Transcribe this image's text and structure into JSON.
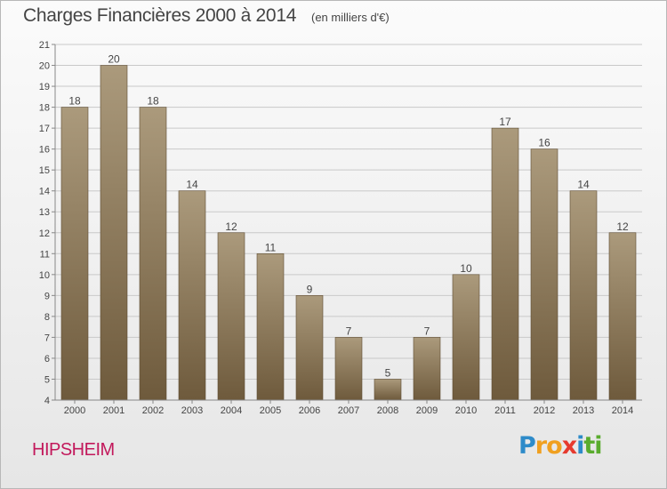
{
  "header": {
    "title": "Charges Financières 2000 à 2014",
    "subtitle": "(en milliers d'€)"
  },
  "footer": {
    "town": "HIPSHEIM",
    "logo_letters": [
      "P",
      "r",
      "o",
      "x",
      "i",
      "t",
      "i"
    ],
    "logo_colors": [
      "#2e8bc9",
      "#f0a020",
      "#f0a020",
      "#e63a2e",
      "#2e8bc9",
      "#5aac2e",
      "#5aac2e"
    ]
  },
  "colors": {
    "bar_top": "#ab9a7c",
    "bar_bottom": "#6e5a3c",
    "grid": "#c9c9c9",
    "axis_text": "#444444",
    "town": "#c2185b"
  },
  "chart_data": {
    "type": "bar",
    "title": "Charges Financières 2000 à 2014",
    "subtitle": "(en milliers d'€)",
    "categories": [
      "2000",
      "2001",
      "2002",
      "2003",
      "2004",
      "2005",
      "2006",
      "2007",
      "2008",
      "2009",
      "2010",
      "2011",
      "2012",
      "2013",
      "2014"
    ],
    "values": [
      18,
      20,
      18,
      14,
      12,
      11,
      9,
      7,
      5,
      7,
      10,
      17,
      16,
      14,
      12
    ],
    "data_labels": [
      "18",
      "20",
      "18",
      "14",
      "12",
      "11",
      "9",
      "7",
      "5",
      "7",
      "10",
      "17",
      "16",
      "14",
      "12"
    ],
    "ylim": [
      4,
      21
    ],
    "yticks": [
      "4",
      "5",
      "6",
      "7",
      "8",
      "9",
      "10",
      "11",
      "12",
      "13",
      "14",
      "15",
      "16",
      "17",
      "18",
      "19",
      "20",
      "21"
    ],
    "xlabel": "",
    "ylabel": "",
    "grid": true
  }
}
